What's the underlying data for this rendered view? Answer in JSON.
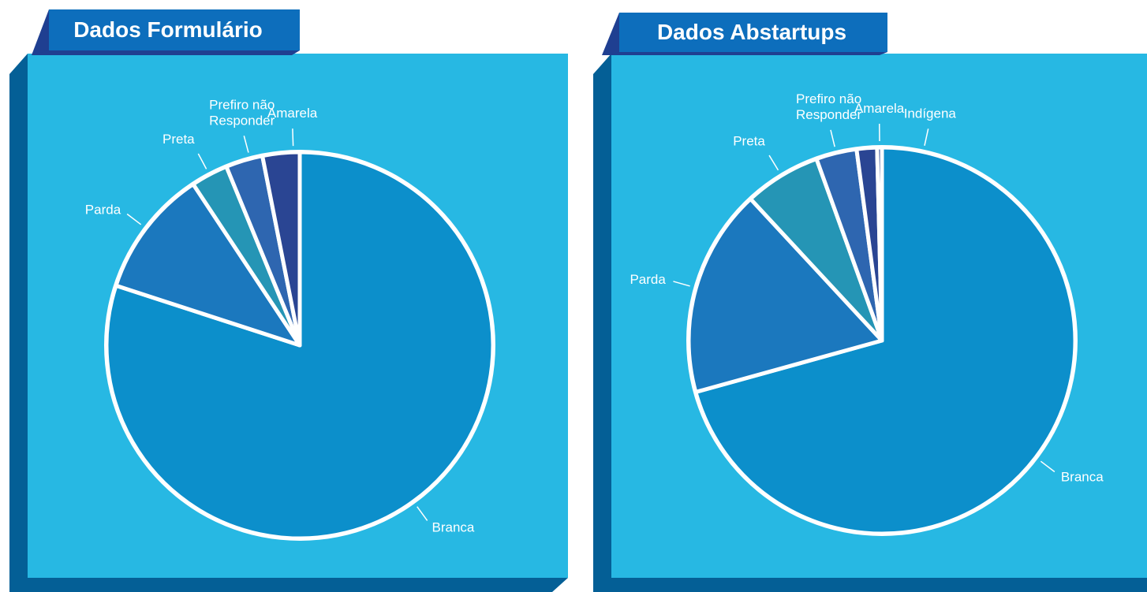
{
  "chart_data": [
    {
      "type": "pie",
      "title": "Dados Formulário",
      "categories": [
        "Branca",
        "Parda",
        "Preta",
        "Prefiro não Responder",
        "Amarela"
      ],
      "values": [
        80,
        10.7,
        3.1,
        3.1,
        3.1
      ],
      "colors": [
        "#0c8fcb",
        "#1b78be",
        "#2595b5",
        "#2e66b0",
        "#2a4593"
      ]
    },
    {
      "type": "pie",
      "title": "Dados Abstartups",
      "categories": [
        "Branca",
        "Parda",
        "Preta",
        "Prefiro não Responder",
        "Amarela",
        "Indígena"
      ],
      "values": [
        70.7,
        17.4,
        6.4,
        3.4,
        1.7,
        0.4
      ],
      "colors": [
        "#0c8fcb",
        "#1b78be",
        "#2595b5",
        "#2e66b0",
        "#2a4593",
        "#2a4593"
      ]
    }
  ]
}
